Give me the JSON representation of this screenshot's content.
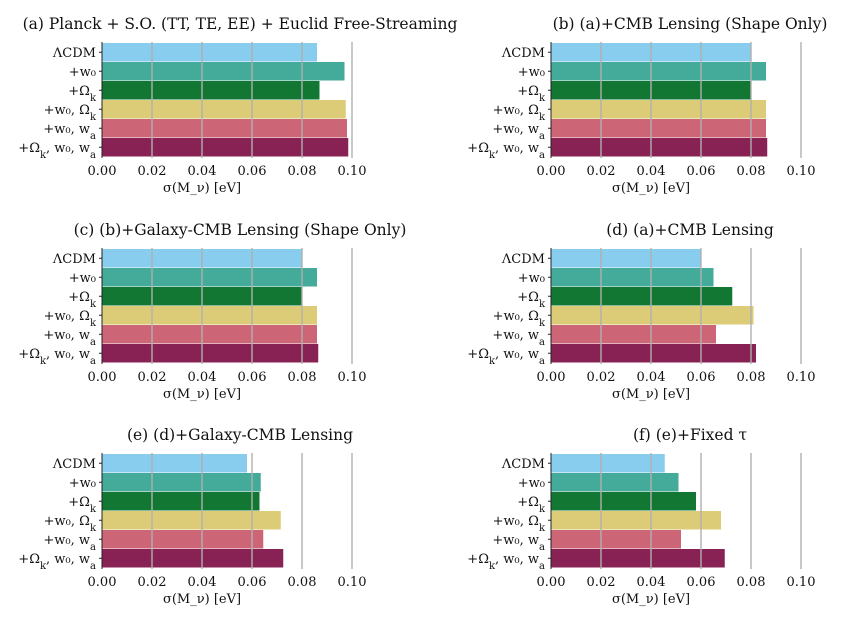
{
  "figure": {
    "bar_colors": [
      "#88CCEE",
      "#44AA99",
      "#117733",
      "#DDCC77",
      "#CC6677",
      "#882255"
    ],
    "grid_color": "#b0b0b0",
    "axis_color": "#222222"
  },
  "chart_data": [
    {
      "type": "bar",
      "orientation": "horizontal",
      "title": "(a) Planck + S.O. (TT, TE, EE) + Euclid Free-Streaming",
      "categories": [
        "ΛCDM",
        "+w₀",
        "+Ω_k",
        "+w₀, Ω_k",
        "+w₀, w_a",
        "+Ω_k, w₀, w_a"
      ],
      "values": [
        0.086,
        0.097,
        0.087,
        0.0975,
        0.098,
        0.0985
      ],
      "xlabel": "σ(M_ν) [eV]",
      "xlim": [
        0.0,
        0.1
      ],
      "xticks": [
        "0.00",
        "0.02",
        "0.04",
        "0.06",
        "0.08",
        "0.10"
      ],
      "grid": true
    },
    {
      "type": "bar",
      "orientation": "horizontal",
      "title": "(b) (a)+CMB Lensing (Shape Only)",
      "categories": [
        "ΛCDM",
        "+w₀",
        "+Ω_k",
        "+w₀, Ω_k",
        "+w₀, w_a",
        "+Ω_k, w₀, w_a"
      ],
      "values": [
        0.08,
        0.086,
        0.08,
        0.086,
        0.086,
        0.0865
      ],
      "xlabel": "σ(M_ν) [eV]",
      "xlim": [
        0.0,
        0.1
      ],
      "xticks": [
        "0.00",
        "0.02",
        "0.04",
        "0.06",
        "0.08",
        "0.10"
      ],
      "grid": true
    },
    {
      "type": "bar",
      "orientation": "horizontal",
      "title": "(c) (b)+Galaxy-CMB Lensing (Shape Only)",
      "categories": [
        "ΛCDM",
        "+w₀",
        "+Ω_k",
        "+w₀, Ω_k",
        "+w₀, w_a",
        "+Ω_k, w₀, w_a"
      ],
      "values": [
        0.08,
        0.086,
        0.08,
        0.086,
        0.086,
        0.0865
      ],
      "xlabel": "σ(M_ν) [eV]",
      "xlim": [
        0.0,
        0.1
      ],
      "xticks": [
        "0.00",
        "0.02",
        "0.04",
        "0.06",
        "0.08",
        "0.10"
      ],
      "grid": true
    },
    {
      "type": "bar",
      "orientation": "horizontal",
      "title": "(d) (a)+CMB Lensing",
      "categories": [
        "ΛCDM",
        "+w₀",
        "+Ω_k",
        "+w₀, Ω_k",
        "+w₀, w_a",
        "+Ω_k, w₀, w_a"
      ],
      "values": [
        0.06,
        0.065,
        0.0725,
        0.081,
        0.066,
        0.082
      ],
      "xlabel": "σ(M_ν) [eV]",
      "xlim": [
        0.0,
        0.1
      ],
      "xticks": [
        "0.00",
        "0.02",
        "0.04",
        "0.06",
        "0.08",
        "0.10"
      ],
      "grid": true
    },
    {
      "type": "bar",
      "orientation": "horizontal",
      "title": "(e) (d)+Galaxy-CMB Lensing",
      "categories": [
        "ΛCDM",
        "+w₀",
        "+Ω_k",
        "+w₀, Ω_k",
        "+w₀, w_a",
        "+Ω_k, w₀, w_a"
      ],
      "values": [
        0.058,
        0.0635,
        0.063,
        0.0715,
        0.0645,
        0.0725
      ],
      "xlabel": "σ(M_ν) [eV]",
      "xlim": [
        0.0,
        0.1
      ],
      "xticks": [
        "0.00",
        "0.02",
        "0.04",
        "0.06",
        "0.08",
        "0.10"
      ],
      "grid": true
    },
    {
      "type": "bar",
      "orientation": "horizontal",
      "title": "(f) (e)+Fixed τ",
      "categories": [
        "ΛCDM",
        "+w₀",
        "+Ω_k",
        "+w₀, Ω_k",
        "+w₀, w_a",
        "+Ω_k, w₀, w_a"
      ],
      "values": [
        0.0455,
        0.051,
        0.058,
        0.068,
        0.052,
        0.0695
      ],
      "xlabel": "σ(M_ν) [eV]",
      "xlim": [
        0.0,
        0.1
      ],
      "xticks": [
        "0.00",
        "0.02",
        "0.04",
        "0.06",
        "0.08",
        "0.10"
      ],
      "grid": true
    }
  ]
}
